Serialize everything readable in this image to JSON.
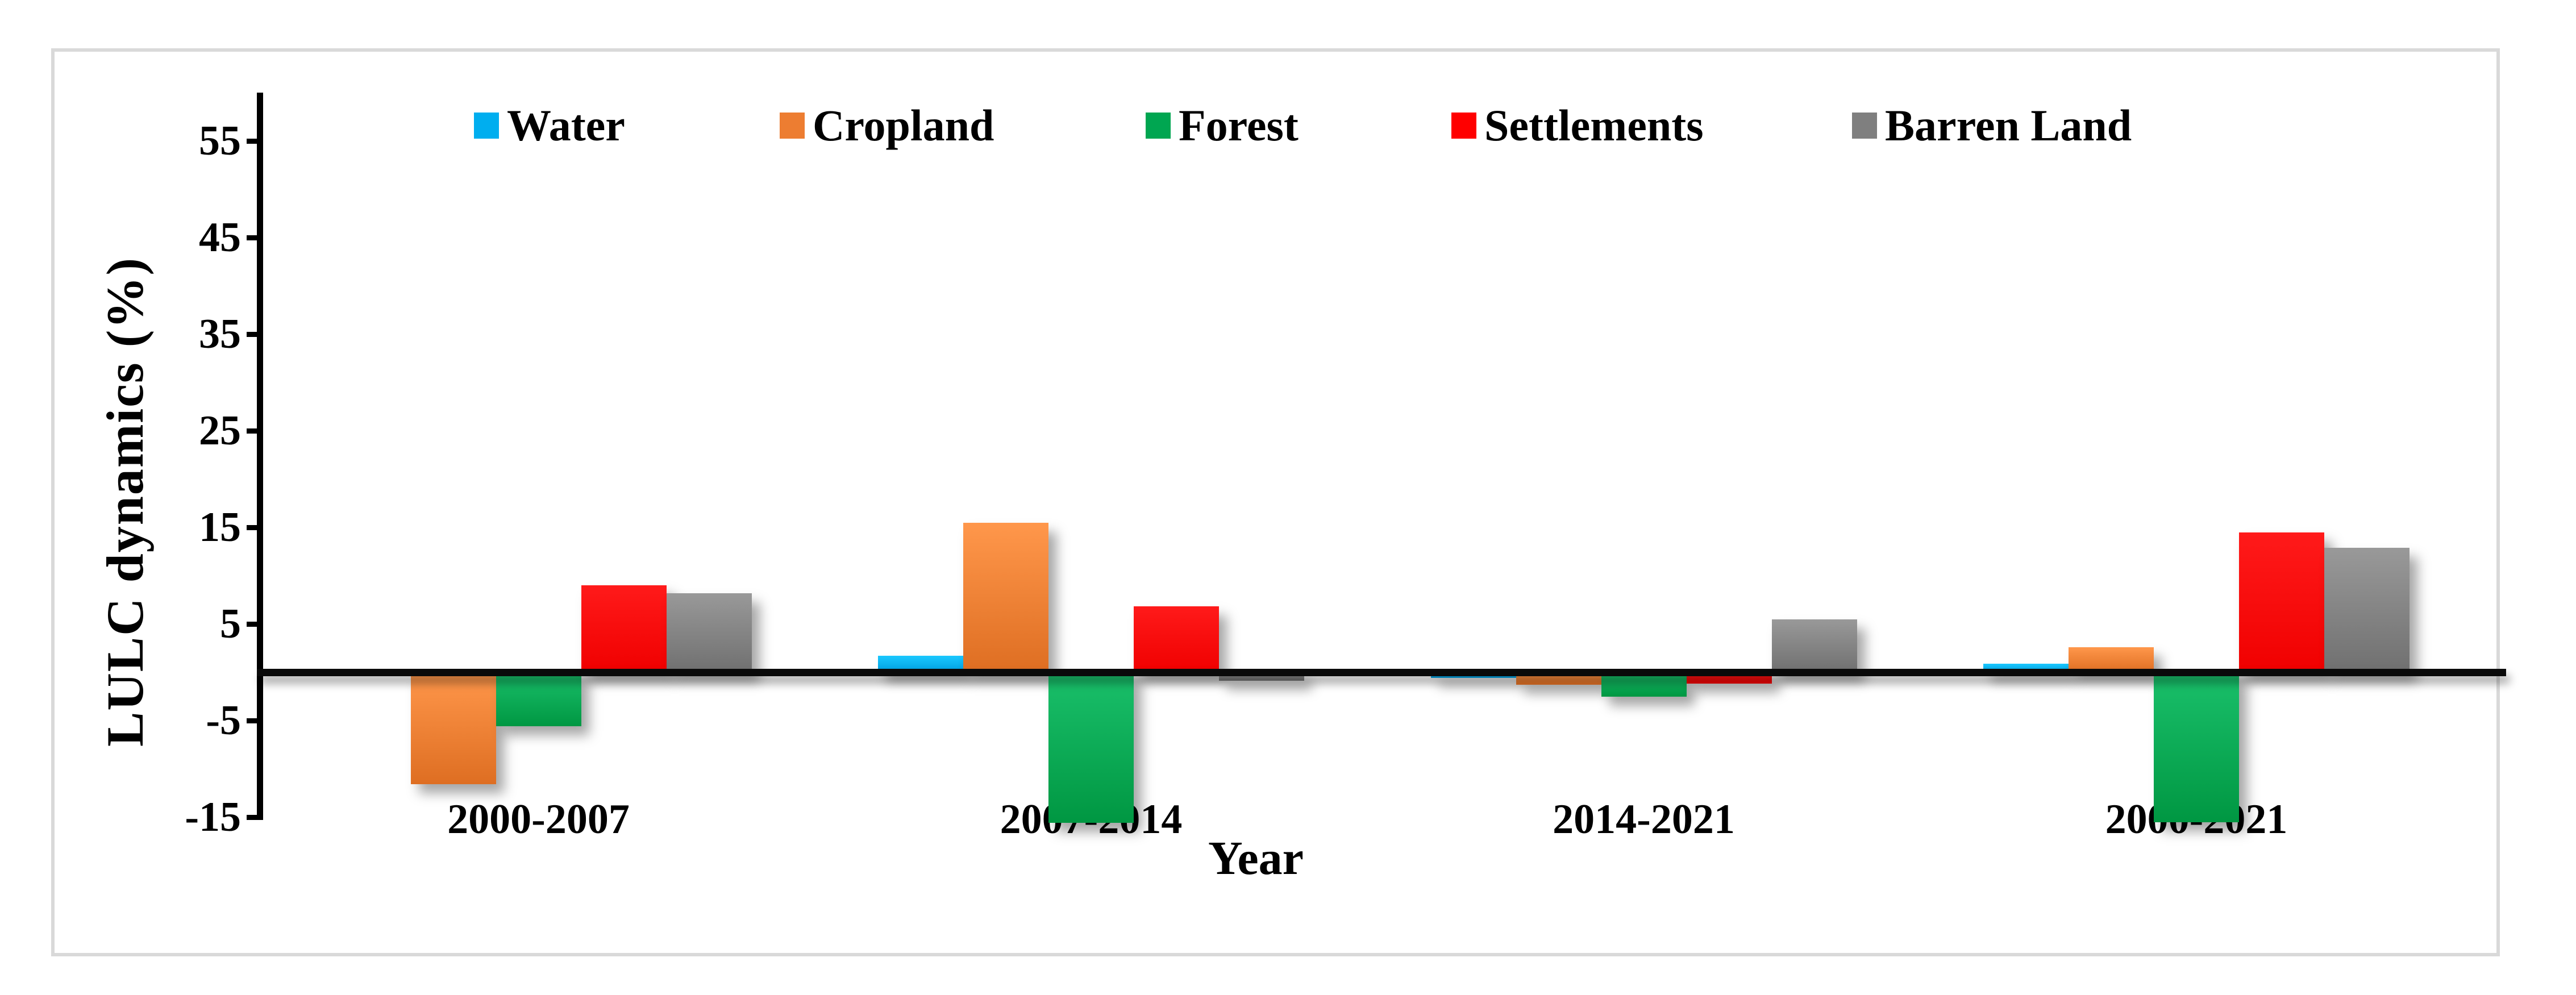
{
  "page": {
    "background": "#FFFFFF",
    "frame_border_color": "#D9D9D9"
  },
  "chart_data": {
    "type": "bar",
    "title": "",
    "xlabel": "Year",
    "ylabel": "LULC dynamics (%)",
    "categories": [
      "2000-2007",
      "2007-2014",
      "2014-2021",
      "2000-2021"
    ],
    "series": [
      {
        "name": "Water",
        "color": "#00AEEF",
        "values": [
          0.0,
          1.7,
          -0.6,
          0.9
        ]
      },
      {
        "name": "Cropland",
        "color": "#ED7D31",
        "values": [
          -11.6,
          15.5,
          -1.3,
          2.6
        ]
      },
      {
        "name": "Forest",
        "color": "#00A651",
        "values": [
          -5.6,
          -15.6,
          -2.5,
          -15.5
        ]
      },
      {
        "name": "Settlements",
        "color": "#FF0000",
        "values": [
          9.0,
          6.8,
          -1.2,
          14.5
        ]
      },
      {
        "name": "Barren Land",
        "color": "#7F7F7F",
        "values": [
          8.2,
          -0.9,
          5.5,
          12.9
        ]
      }
    ],
    "y_ticks": [
      55,
      45,
      35,
      25,
      15,
      5,
      -5,
      -15
    ],
    "ylim": [
      -15,
      60
    ],
    "grid": false,
    "legend_position": "top",
    "axis_color": "#000000"
  }
}
